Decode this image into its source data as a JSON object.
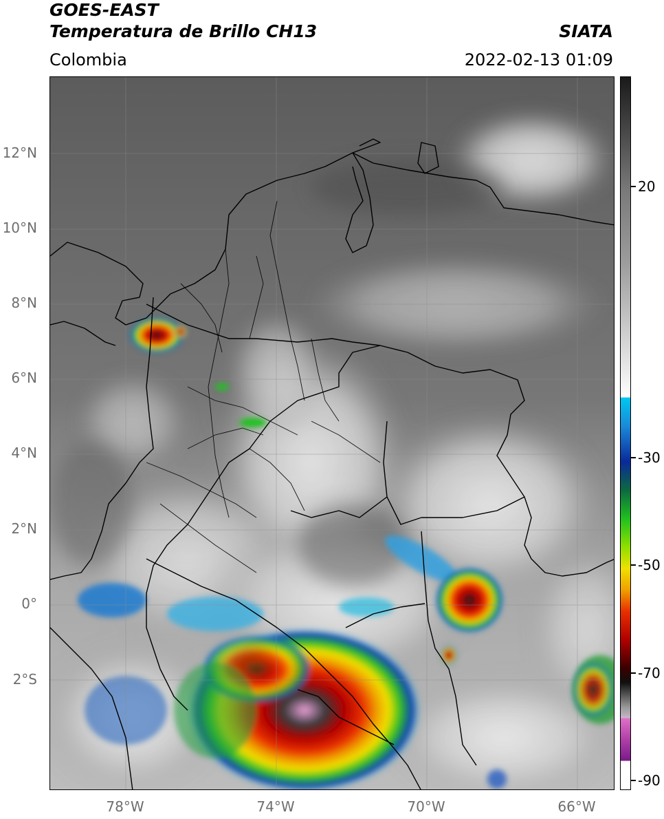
{
  "header": {
    "satellite": "GOES-EAST",
    "product": "Temperatura de Brillo CH13",
    "region": "Colombia",
    "organization": "SIATA",
    "timestamp": "2022-02-13 01:09"
  },
  "map": {
    "latitude_labels": [
      "12°N",
      "10°N",
      "8°N",
      "6°N",
      "4°N",
      "2°N",
      "0°",
      "2°S"
    ],
    "longitude_labels": [
      "78°W",
      "74°W",
      "70°W",
      "66°W"
    ]
  },
  "colorbar": {
    "tick_labels": [
      "20",
      "-30",
      "-50",
      "-70",
      "-90"
    ],
    "colors": {
      "warm_gray": "#5a5a5a",
      "light_gray": "#f0f0f0",
      "cyan": "#00c8f0",
      "blue": "#0a2a9a",
      "green": "#20c020",
      "yellow": "#f0e000",
      "orange": "#f08000",
      "red": "#d00000",
      "dark": "#101010",
      "pink": "#e070c8",
      "purple": "#7a1a8a"
    }
  }
}
